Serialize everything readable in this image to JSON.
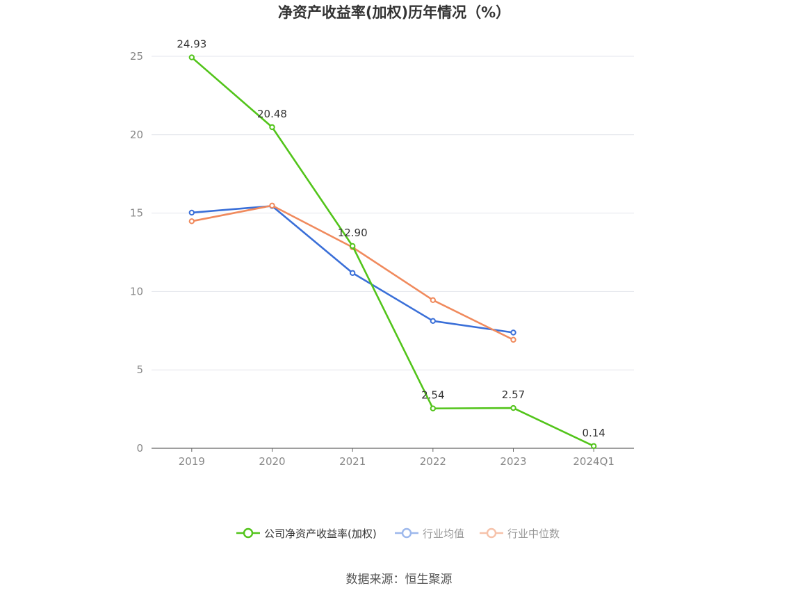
{
  "chart_data": {
    "type": "line",
    "title": "净资产收益率(加权)历年情况（%）",
    "categories": [
      "2019",
      "2020",
      "2021",
      "2022",
      "2023",
      "2024Q1"
    ],
    "ylim": [
      0,
      25
    ],
    "yticks": [
      0,
      5,
      10,
      15,
      20,
      25
    ],
    "grid": true,
    "legend_position": "bottom",
    "series": [
      {
        "name": "公司净资产收益率(加权)",
        "color": "#52c41a",
        "values": [
          24.93,
          20.48,
          12.9,
          2.54,
          2.57,
          0.14
        ],
        "labels": [
          "24.93",
          "20.48",
          "12.90",
          "2.54",
          "2.57",
          "0.14"
        ]
      },
      {
        "name": "行业均值",
        "color": "#3a6fd8",
        "values": [
          15.03,
          15.45,
          11.18,
          8.12,
          7.38,
          null
        ]
      },
      {
        "name": "行业中位数",
        "color": "#f08a5d",
        "values": [
          14.48,
          15.48,
          12.82,
          9.45,
          6.92,
          null
        ]
      }
    ],
    "legend_colors": [
      "#52c41a",
      "#9db8ec",
      "#f6c2aa"
    ],
    "legend_text_colors": [
      "#333333",
      "#999999",
      "#999999"
    ]
  },
  "source": "数据来源：恒生聚源"
}
